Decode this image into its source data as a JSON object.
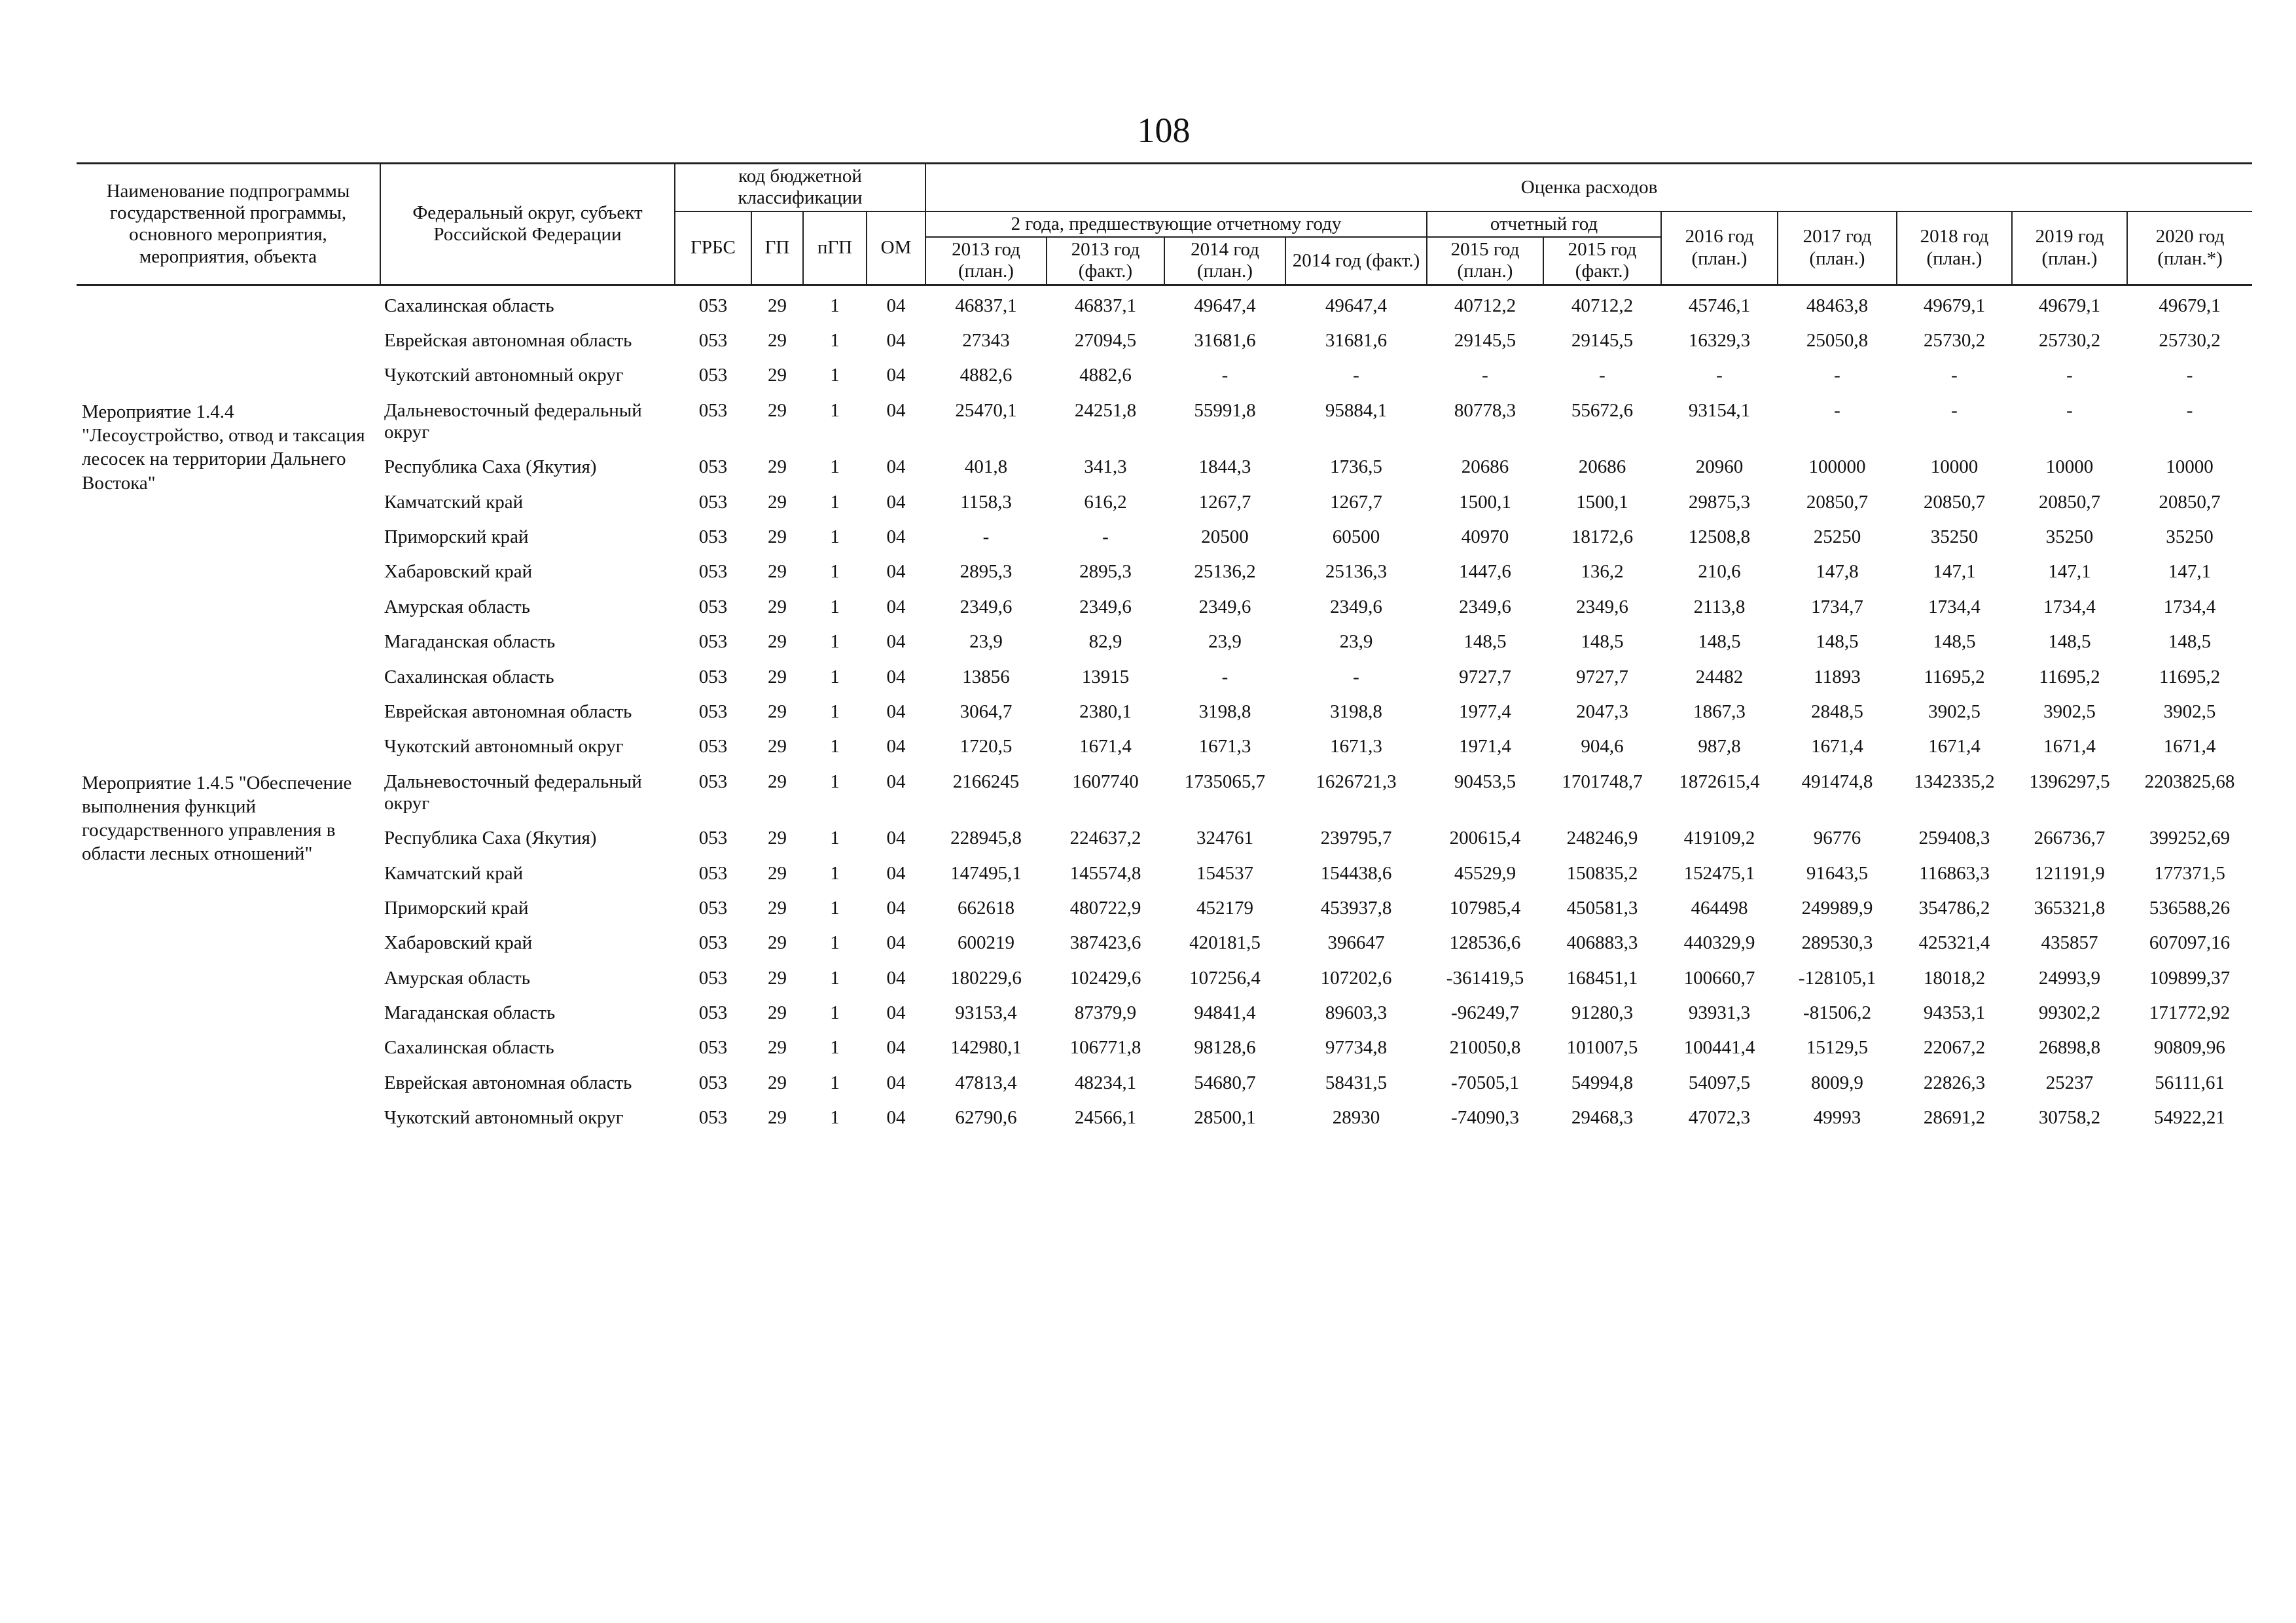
{
  "page_number": "108",
  "header": {
    "name_col": "Наименование подпрограммы государственной программы, основного мероприятия, мероприятия, объекта",
    "region_col": "Федеральный округ, субъект Российской Федерации",
    "budget_code": "код бюджетной классификации",
    "codes": [
      "ГРБС",
      "ГП",
      "пГП",
      "ОМ"
    ],
    "expenses": "Оценка расходов",
    "prior_years": "2 года, предшествующие отчетному году",
    "report_year": "отчетный год",
    "years": [
      "2013 год (план.)",
      "2013 год (факт.)",
      "2014 год (план.)",
      "2014 год (факт.)",
      "2015 год (план.)",
      "2015 год (факт.)",
      "2016 год (план.)",
      "2017 год (план.)",
      "2018 год (план.)",
      "2019 год (план.)",
      "2020 год (план.*)"
    ]
  },
  "sections": [
    {
      "rows": [
        {
          "region": "Сахалинская область",
          "codes": [
            "053",
            "29",
            "1",
            "04"
          ],
          "values": [
            "46837,1",
            "46837,1",
            "49647,4",
            "49647,4",
            "40712,2",
            "40712,2",
            "45746,1",
            "48463,8",
            "49679,1",
            "49679,1",
            "49679,1"
          ]
        },
        {
          "region": "Еврейская автономная область",
          "codes": [
            "053",
            "29",
            "1",
            "04"
          ],
          "values": [
            "27343",
            "27094,5",
            "31681,6",
            "31681,6",
            "29145,5",
            "29145,5",
            "16329,3",
            "25050,8",
            "25730,2",
            "25730,2",
            "25730,2"
          ]
        },
        {
          "region": "Чукотский автономный округ",
          "codes": [
            "053",
            "29",
            "1",
            "04"
          ],
          "values": [
            "4882,6",
            "4882,6",
            "-",
            "-",
            "-",
            "-",
            "-",
            "-",
            "-",
            "-",
            "-"
          ]
        }
      ]
    },
    {
      "label": "Мероприятие 1.4.4 \"Лесоустройство, отвод и таксация лесосек на территории Дальнего Востока\"",
      "rows": [
        {
          "region": "Дальневосточный федеральный округ",
          "codes": [
            "053",
            "29",
            "1",
            "04"
          ],
          "values": [
            "25470,1",
            "24251,8",
            "55991,8",
            "95884,1",
            "80778,3",
            "55672,6",
            "93154,1",
            "-",
            "-",
            "-",
            "-"
          ]
        },
        {
          "region": "Республика Саха (Якутия)",
          "codes": [
            "053",
            "29",
            "1",
            "04"
          ],
          "values": [
            "401,8",
            "341,3",
            "1844,3",
            "1736,5",
            "20686",
            "20686",
            "20960",
            "100000",
            "10000",
            "10000",
            "10000"
          ]
        },
        {
          "region": "Камчатский край",
          "codes": [
            "053",
            "29",
            "1",
            "04"
          ],
          "values": [
            "1158,3",
            "616,2",
            "1267,7",
            "1267,7",
            "1500,1",
            "1500,1",
            "29875,3",
            "20850,7",
            "20850,7",
            "20850,7",
            "20850,7"
          ]
        },
        {
          "region": "Приморский край",
          "codes": [
            "053",
            "29",
            "1",
            "04"
          ],
          "values": [
            "-",
            "-",
            "20500",
            "60500",
            "40970",
            "18172,6",
            "12508,8",
            "25250",
            "35250",
            "35250",
            "35250"
          ]
        },
        {
          "region": "Хабаровский край",
          "codes": [
            "053",
            "29",
            "1",
            "04"
          ],
          "values": [
            "2895,3",
            "2895,3",
            "25136,2",
            "25136,3",
            "1447,6",
            "136,2",
            "210,6",
            "147,8",
            "147,1",
            "147,1",
            "147,1"
          ]
        },
        {
          "region": "Амурская область",
          "codes": [
            "053",
            "29",
            "1",
            "04"
          ],
          "values": [
            "2349,6",
            "2349,6",
            "2349,6",
            "2349,6",
            "2349,6",
            "2349,6",
            "2113,8",
            "1734,7",
            "1734,4",
            "1734,4",
            "1734,4"
          ]
        },
        {
          "region": "Магаданская область",
          "codes": [
            "053",
            "29",
            "1",
            "04"
          ],
          "values": [
            "23,9",
            "82,9",
            "23,9",
            "23,9",
            "148,5",
            "148,5",
            "148,5",
            "148,5",
            "148,5",
            "148,5",
            "148,5"
          ]
        },
        {
          "region": "Сахалинская область",
          "codes": [
            "053",
            "29",
            "1",
            "04"
          ],
          "values": [
            "13856",
            "13915",
            "-",
            "-",
            "9727,7",
            "9727,7",
            "24482",
            "11893",
            "11695,2",
            "11695,2",
            "11695,2"
          ]
        },
        {
          "region": "Еврейская автономная область",
          "codes": [
            "053",
            "29",
            "1",
            "04"
          ],
          "values": [
            "3064,7",
            "2380,1",
            "3198,8",
            "3198,8",
            "1977,4",
            "2047,3",
            "1867,3",
            "2848,5",
            "3902,5",
            "3902,5",
            "3902,5"
          ]
        },
        {
          "region": "Чукотский автономный округ",
          "codes": [
            "053",
            "29",
            "1",
            "04"
          ],
          "values": [
            "1720,5",
            "1671,4",
            "1671,3",
            "1671,3",
            "1971,4",
            "904,6",
            "987,8",
            "1671,4",
            "1671,4",
            "1671,4",
            "1671,4"
          ]
        }
      ]
    },
    {
      "label": "Мероприятие 1.4.5 \"Обеспечение выполнения функций государственного управления в области лесных отношений\"",
      "rows": [
        {
          "region": "Дальневосточный федеральный округ",
          "codes": [
            "053",
            "29",
            "1",
            "04"
          ],
          "values": [
            "2166245",
            "1607740",
            "1735065,7",
            "1626721,3",
            "90453,5",
            "1701748,7",
            "1872615,4",
            "491474,8",
            "1342335,2",
            "1396297,5",
            "2203825,68"
          ]
        },
        {
          "region": "Республика Саха (Якутия)",
          "codes": [
            "053",
            "29",
            "1",
            "04"
          ],
          "values": [
            "228945,8",
            "224637,2",
            "324761",
            "239795,7",
            "200615,4",
            "248246,9",
            "419109,2",
            "96776",
            "259408,3",
            "266736,7",
            "399252,69"
          ]
        },
        {
          "region": "Камчатский край",
          "codes": [
            "053",
            "29",
            "1",
            "04"
          ],
          "values": [
            "147495,1",
            "145574,8",
            "154537",
            "154438,6",
            "45529,9",
            "150835,2",
            "152475,1",
            "91643,5",
            "116863,3",
            "121191,9",
            "177371,5"
          ]
        },
        {
          "region": "Приморский край",
          "codes": [
            "053",
            "29",
            "1",
            "04"
          ],
          "values": [
            "662618",
            "480722,9",
            "452179",
            "453937,8",
            "107985,4",
            "450581,3",
            "464498",
            "249989,9",
            "354786,2",
            "365321,8",
            "536588,26"
          ]
        },
        {
          "region": "Хабаровский край",
          "codes": [
            "053",
            "29",
            "1",
            "04"
          ],
          "values": [
            "600219",
            "387423,6",
            "420181,5",
            "396647",
            "128536,6",
            "406883,3",
            "440329,9",
            "289530,3",
            "425321,4",
            "435857",
            "607097,16"
          ]
        },
        {
          "region": "Амурская область",
          "codes": [
            "053",
            "29",
            "1",
            "04"
          ],
          "values": [
            "180229,6",
            "102429,6",
            "107256,4",
            "107202,6",
            "-361419,5",
            "168451,1",
            "100660,7",
            "-128105,1",
            "18018,2",
            "24993,9",
            "109899,37"
          ]
        },
        {
          "region": "Магаданская область",
          "codes": [
            "053",
            "29",
            "1",
            "04"
          ],
          "values": [
            "93153,4",
            "87379,9",
            "94841,4",
            "89603,3",
            "-96249,7",
            "91280,3",
            "93931,3",
            "-81506,2",
            "94353,1",
            "99302,2",
            "171772,92"
          ]
        },
        {
          "region": "Сахалинская область",
          "codes": [
            "053",
            "29",
            "1",
            "04"
          ],
          "values": [
            "142980,1",
            "106771,8",
            "98128,6",
            "97734,8",
            "210050,8",
            "101007,5",
            "100441,4",
            "15129,5",
            "22067,2",
            "26898,8",
            "90809,96"
          ]
        },
        {
          "region": "Еврейская автономная область",
          "codes": [
            "053",
            "29",
            "1",
            "04"
          ],
          "values": [
            "47813,4",
            "48234,1",
            "54680,7",
            "58431,5",
            "-70505,1",
            "54994,8",
            "54097,5",
            "8009,9",
            "22826,3",
            "25237",
            "56111,61"
          ]
        },
        {
          "region": "Чукотский автономный округ",
          "codes": [
            "053",
            "29",
            "1",
            "04"
          ],
          "values": [
            "62790,6",
            "24566,1",
            "28500,1",
            "28930",
            "-74090,3",
            "29468,3",
            "47072,3",
            "49993",
            "28691,2",
            "30758,2",
            "54922,21"
          ]
        }
      ]
    }
  ]
}
